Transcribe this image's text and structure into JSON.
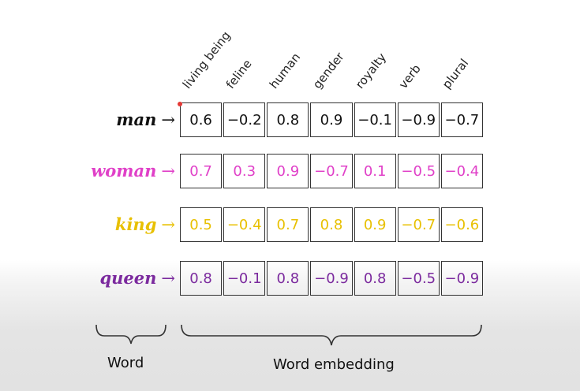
{
  "headers": [
    "living being",
    "feline",
    "human",
    "gender",
    "royalty",
    "verb",
    "plural"
  ],
  "rows": [
    {
      "word": "man",
      "arrow": "→",
      "color": "#111111",
      "values": [
        "0.6",
        "−0.2",
        "0.8",
        "0.9",
        "−0.1",
        "−0.9",
        "−0.7"
      ]
    },
    {
      "word": "woman",
      "arrow": "→",
      "color": "#e040c8",
      "values": [
        "0.7",
        "0.3",
        "0.9",
        "−0.7",
        "0.1",
        "−0.5",
        "−0.4"
      ]
    },
    {
      "word": "king",
      "arrow": "→",
      "color": "#e8c000",
      "values": [
        "0.5",
        "−0.4",
        "0.7",
        "0.8",
        "0.9",
        "−0.7",
        "−0.6"
      ]
    },
    {
      "word": "queen",
      "arrow": "→",
      "color": "#7b2a9e",
      "values": [
        "0.8",
        "−0.1",
        "0.8",
        "−0.9",
        "0.8",
        "−0.5",
        "−0.9"
      ]
    }
  ],
  "braces": {
    "word_label": "Word",
    "embedding_label": "Word embedding"
  }
}
